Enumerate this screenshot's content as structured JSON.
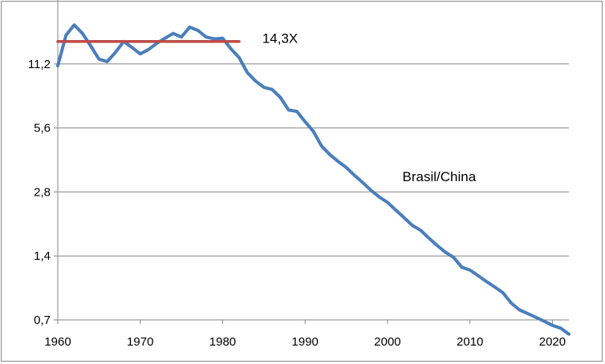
{
  "chart_data": {
    "type": "line",
    "title": "",
    "xlabel": "",
    "ylabel": "",
    "y_scale": "log2",
    "xlim": [
      1960,
      2022
    ],
    "ylim": [
      0.7,
      22.4
    ],
    "x_ticks": [
      "1960",
      "1970",
      "1980",
      "1990",
      "2000",
      "2010",
      "2020"
    ],
    "y_ticks": [
      "0,7",
      "1,4",
      "2,8",
      "5,6",
      "11,2"
    ],
    "grid": "horizontal",
    "series": [
      {
        "name": "Brasil/China",
        "color": "#4a7ebb",
        "x": [
          1960,
          1961,
          1962,
          1963,
          1964,
          1965,
          1966,
          1967,
          1968,
          1969,
          1970,
          1971,
          1972,
          1973,
          1974,
          1975,
          1976,
          1977,
          1978,
          1979,
          1980,
          1981,
          1982,
          1983,
          1984,
          1985,
          1986,
          1987,
          1988,
          1989,
          1990,
          1991,
          1992,
          1993,
          1994,
          1995,
          1996,
          1997,
          1998,
          1999,
          2000,
          2001,
          2002,
          2003,
          2004,
          2005,
          2006,
          2007,
          2008,
          2009,
          2010,
          2011,
          2012,
          2013,
          2014,
          2015,
          2016,
          2017,
          2018,
          2019,
          2020,
          2021,
          2022
        ],
        "values": [
          11.0,
          15.3,
          17.1,
          15.6,
          13.6,
          11.8,
          11.5,
          12.7,
          14.3,
          13.4,
          12.5,
          13.1,
          14.0,
          14.8,
          15.6,
          15.0,
          16.7,
          16.1,
          15.0,
          14.7,
          14.8,
          13.2,
          12.0,
          10.2,
          9.3,
          8.7,
          8.5,
          7.8,
          6.8,
          6.7,
          6.0,
          5.4,
          4.6,
          4.2,
          3.9,
          3.65,
          3.35,
          3.1,
          2.85,
          2.65,
          2.5,
          2.3,
          2.12,
          1.95,
          1.85,
          1.7,
          1.57,
          1.46,
          1.38,
          1.24,
          1.2,
          1.13,
          1.06,
          1.0,
          0.94,
          0.84,
          0.78,
          0.75,
          0.72,
          0.69,
          0.66,
          0.64,
          0.6
        ]
      },
      {
        "name": "",
        "color": "#be4b48",
        "x": [
          1960,
          1982
        ],
        "values": [
          14.3,
          14.3
        ]
      }
    ],
    "annotations": [
      {
        "text": "14,3X",
        "x": 1985,
        "y": 14.3
      },
      {
        "text": "Brasil/China",
        "x": 2002,
        "y": 3.2
      }
    ]
  }
}
